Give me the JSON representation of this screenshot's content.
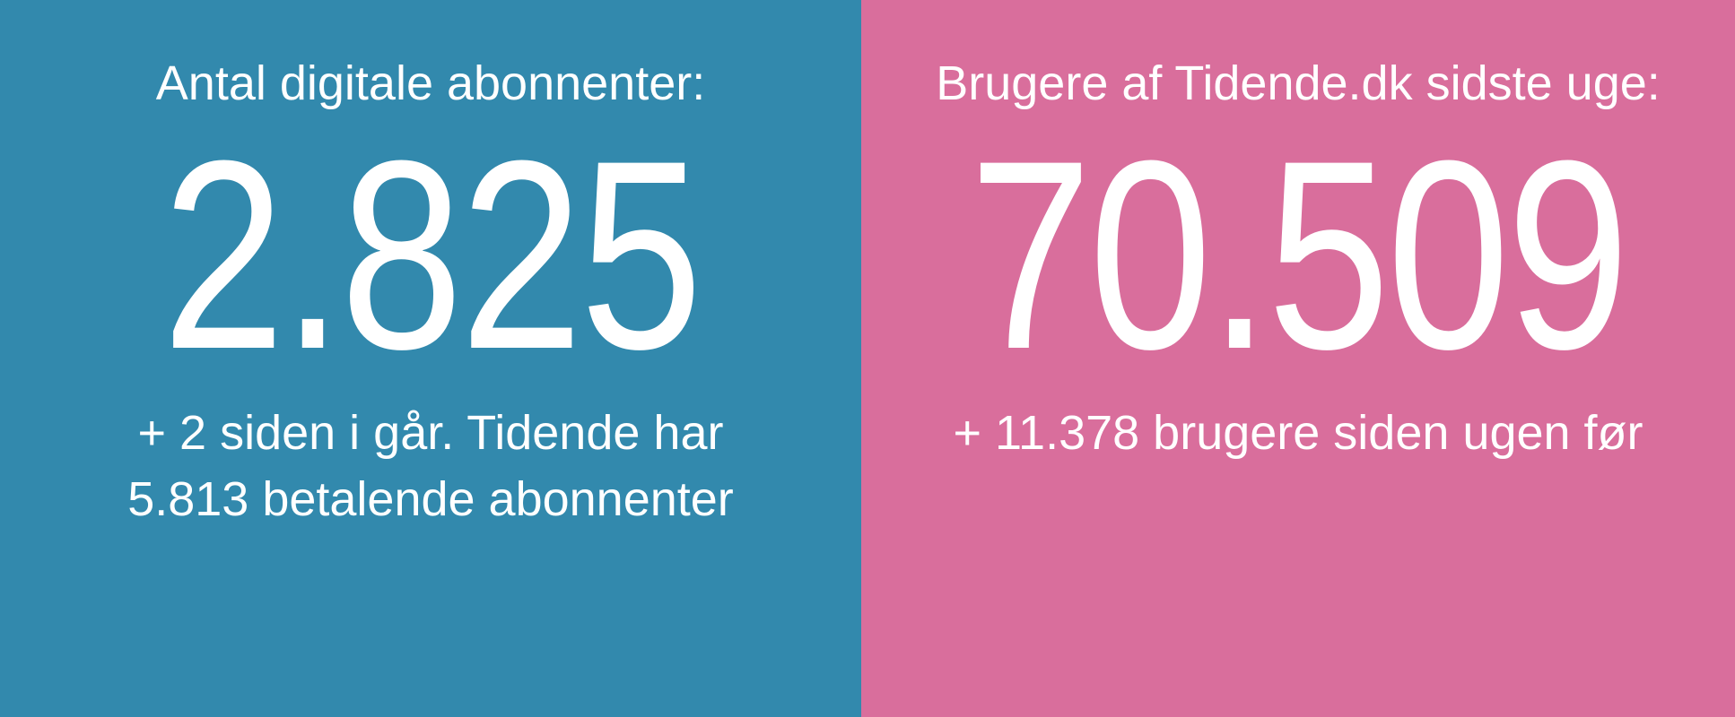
{
  "left": {
    "label": "Antal digitale abonnenter:",
    "number": "2.825",
    "sub_line_1": "+ 2 siden i går. Tidende har",
    "sub_line_2": "5.813 betalende abonnenter"
  },
  "right": {
    "label": "Brugere af Tidende.dk sidste uge:",
    "number": "70.509",
    "sub_line_1": "+ 11.378 brugere siden ugen før"
  },
  "colors": {
    "left_background": "#3289ad",
    "right_background": "#d96e9c",
    "text": "#ffffff"
  }
}
